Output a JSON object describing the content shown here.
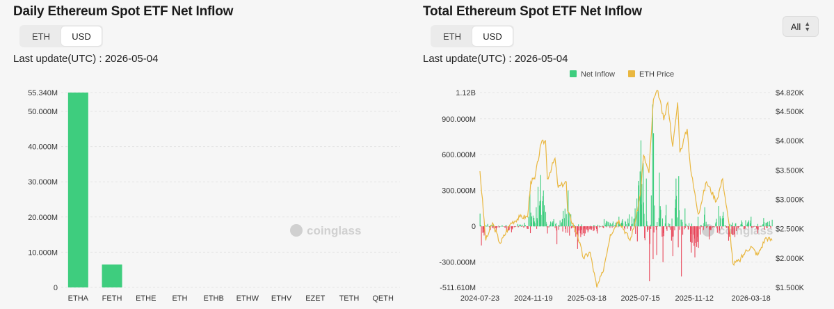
{
  "left": {
    "title": "Daily Ethereum Spot ETF Net Inflow",
    "toggle": [
      "ETH",
      "USD"
    ],
    "active_toggle": "USD",
    "last_update": "Last update(UTC) : 2026-05-04"
  },
  "right": {
    "title": "Total Ethereum Spot ETF Net Inflow",
    "toggle": [
      "ETH",
      "USD"
    ],
    "active_toggle": "USD",
    "last_update": "Last update(UTC) : 2026-05-04",
    "range_select": "All"
  },
  "watermark": "coinglass",
  "colors": {
    "positive": "#3ecd7e",
    "negative": "#e8475a",
    "price": "#e9b740"
  },
  "chart_data": [
    {
      "type": "bar",
      "categories": [
        "ETHA",
        "FETH",
        "ETHE",
        "ETH",
        "ETHB",
        "ETHW",
        "ETHV",
        "EZET",
        "TETH",
        "QETH"
      ],
      "values": [
        55340000,
        6500000,
        0,
        0,
        0,
        0,
        0,
        0,
        0,
        0
      ],
      "y_ticks": [
        "0",
        "10.000M",
        "20.000M",
        "30.000M",
        "40.000M",
        "50.000M",
        "55.340M"
      ],
      "y_tick_values": [
        0,
        10000000,
        20000000,
        30000000,
        40000000,
        50000000,
        55340000
      ],
      "ylim": [
        0,
        55340000
      ],
      "grid": true
    },
    {
      "type": "bar+line",
      "legend": [
        "Net Inflow",
        "ETH Price"
      ],
      "legend_position": "top-center",
      "x_ticks": [
        "2024-07-23",
        "2024-11-19",
        "2025-03-18",
        "2025-07-15",
        "2025-11-12",
        "2026-03-18"
      ],
      "y_left_ticks": [
        "1.12B",
        "900.000M",
        "600.000M",
        "300.000M",
        "0",
        "-300.000M",
        "-511.610M"
      ],
      "y_left_tick_values": [
        1120000000,
        900000000,
        600000000,
        300000000,
        0,
        -300000000,
        -511610000
      ],
      "y_left_lim": [
        -511610000,
        1120000000
      ],
      "y_right_ticks": [
        "$4.820K",
        "$4.500K",
        "$4.000K",
        "$3.500K",
        "$3.000K",
        "$2.500K",
        "$2.000K",
        "$1.500K"
      ],
      "y_right_tick_values": [
        4820,
        4500,
        4000,
        3500,
        3000,
        2500,
        2000,
        1500
      ],
      "y_right_lim": [
        1500,
        4820
      ],
      "date_range": [
        "2024-07-23",
        "2026-05-04"
      ],
      "flows": [
        [
          "2024-07-23",
          107000000
        ],
        [
          "2024-07-26",
          -160000000
        ],
        [
          "2024-08-01",
          -77000000
        ],
        [
          "2024-08-09",
          20000000
        ],
        [
          "2024-08-15",
          -30000000
        ],
        [
          "2024-08-28",
          -40000000
        ],
        [
          "2024-09-10",
          10000000
        ],
        [
          "2024-09-20",
          -40000000
        ],
        [
          "2024-10-01",
          -50000000
        ],
        [
          "2024-10-15",
          20000000
        ],
        [
          "2024-10-30",
          30000000
        ],
        [
          "2024-11-08",
          80000000
        ],
        [
          "2024-11-11",
          295000000
        ],
        [
          "2024-11-18",
          90000000
        ],
        [
          "2024-11-25",
          160000000
        ],
        [
          "2024-11-29",
          330000000
        ],
        [
          "2024-12-05",
          430000000
        ],
        [
          "2024-12-11",
          300000000
        ],
        [
          "2024-12-16",
          120000000
        ],
        [
          "2024-12-20",
          -60000000
        ],
        [
          "2024-12-27",
          40000000
        ],
        [
          "2025-01-03",
          60000000
        ],
        [
          "2025-01-10",
          -150000000
        ],
        [
          "2025-01-17",
          50000000
        ],
        [
          "2025-01-24",
          130000000
        ],
        [
          "2025-02-04",
          300000000
        ],
        [
          "2025-02-10",
          100000000
        ],
        [
          "2025-02-25",
          -190000000
        ],
        [
          "2025-03-04",
          -90000000
        ],
        [
          "2025-03-12",
          -80000000
        ],
        [
          "2025-03-20",
          -50000000
        ],
        [
          "2025-04-01",
          -40000000
        ],
        [
          "2025-04-10",
          -60000000
        ],
        [
          "2025-04-25",
          60000000
        ],
        [
          "2025-05-15",
          40000000
        ],
        [
          "2025-05-28",
          80000000
        ],
        [
          "2025-06-05",
          60000000
        ],
        [
          "2025-06-20",
          100000000
        ],
        [
          "2025-07-03",
          150000000
        ],
        [
          "2025-07-10",
          380000000
        ],
        [
          "2025-07-16",
          720000000
        ],
        [
          "2025-07-21",
          530000000
        ],
        [
          "2025-07-28",
          400000000
        ],
        [
          "2025-08-04",
          -460000000
        ],
        [
          "2025-08-11",
          1020000000
        ],
        [
          "2025-08-13",
          780000000
        ],
        [
          "2025-08-20",
          -240000000
        ],
        [
          "2025-08-26",
          450000000
        ],
        [
          "2025-09-03",
          -300000000
        ],
        [
          "2025-09-10",
          180000000
        ],
        [
          "2025-09-25",
          -250000000
        ],
        [
          "2025-10-02",
          400000000
        ],
        [
          "2025-10-08",
          420000000
        ],
        [
          "2025-10-14",
          -420000000
        ],
        [
          "2025-10-22",
          150000000
        ],
        [
          "2025-11-05",
          -220000000
        ],
        [
          "2025-11-13",
          -260000000
        ],
        [
          "2025-11-21",
          -180000000
        ],
        [
          "2025-12-05",
          160000000
        ],
        [
          "2025-12-15",
          -110000000
        ],
        [
          "2026-01-05",
          170000000
        ],
        [
          "2026-01-15",
          120000000
        ],
        [
          "2026-01-27",
          -120000000
        ],
        [
          "2026-02-10",
          -90000000
        ],
        [
          "2026-02-25",
          50000000
        ],
        [
          "2026-03-18",
          80000000
        ],
        [
          "2026-04-01",
          -60000000
        ],
        [
          "2026-04-15",
          70000000
        ],
        [
          "2026-05-04",
          55000000
        ]
      ],
      "price": [
        [
          "2024-07-23",
          3480
        ],
        [
          "2024-08-05",
          2300
        ],
        [
          "2024-08-20",
          2600
        ],
        [
          "2024-09-06",
          2250
        ],
        [
          "2024-09-30",
          2600
        ],
        [
          "2024-10-20",
          2700
        ],
        [
          "2024-11-06",
          2700
        ],
        [
          "2024-11-13",
          3300
        ],
        [
          "2024-11-22",
          3350
        ],
        [
          "2024-12-06",
          3950
        ],
        [
          "2024-12-16",
          4000
        ],
        [
          "2024-12-20",
          3350
        ],
        [
          "2025-01-06",
          3700
        ],
        [
          "2025-01-13",
          3200
        ],
        [
          "2025-01-31",
          3300
        ],
        [
          "2025-02-03",
          2800
        ],
        [
          "2025-02-25",
          2400
        ],
        [
          "2025-03-10",
          2000
        ],
        [
          "2025-03-25",
          2100
        ],
        [
          "2025-04-09",
          1500
        ],
        [
          "2025-04-22",
          1750
        ],
        [
          "2025-05-09",
          2400
        ],
        [
          "2025-05-28",
          2650
        ],
        [
          "2025-06-22",
          2300
        ],
        [
          "2025-07-03",
          2600
        ],
        [
          "2025-07-15",
          3100
        ],
        [
          "2025-07-22",
          3750
        ],
        [
          "2025-08-03",
          3450
        ],
        [
          "2025-08-13",
          4700
        ],
        [
          "2025-08-23",
          4850
        ],
        [
          "2025-09-05",
          4350
        ],
        [
          "2025-09-14",
          4650
        ],
        [
          "2025-09-25",
          3900
        ],
        [
          "2025-10-06",
          4650
        ],
        [
          "2025-10-11",
          3800
        ],
        [
          "2025-10-27",
          4200
        ],
        [
          "2025-11-04",
          3500
        ],
        [
          "2025-11-21",
          2750
        ],
        [
          "2025-12-09",
          3300
        ],
        [
          "2025-12-31",
          2970
        ],
        [
          "2026-01-14",
          3350
        ],
        [
          "2026-01-31",
          2400
        ],
        [
          "2026-02-06",
          1900
        ],
        [
          "2026-02-20",
          1950
        ],
        [
          "2026-03-05",
          2100
        ],
        [
          "2026-03-18",
          2200
        ],
        [
          "2026-04-02",
          2050
        ],
        [
          "2026-04-20",
          2350
        ],
        [
          "2026-05-04",
          2300
        ]
      ]
    }
  ]
}
